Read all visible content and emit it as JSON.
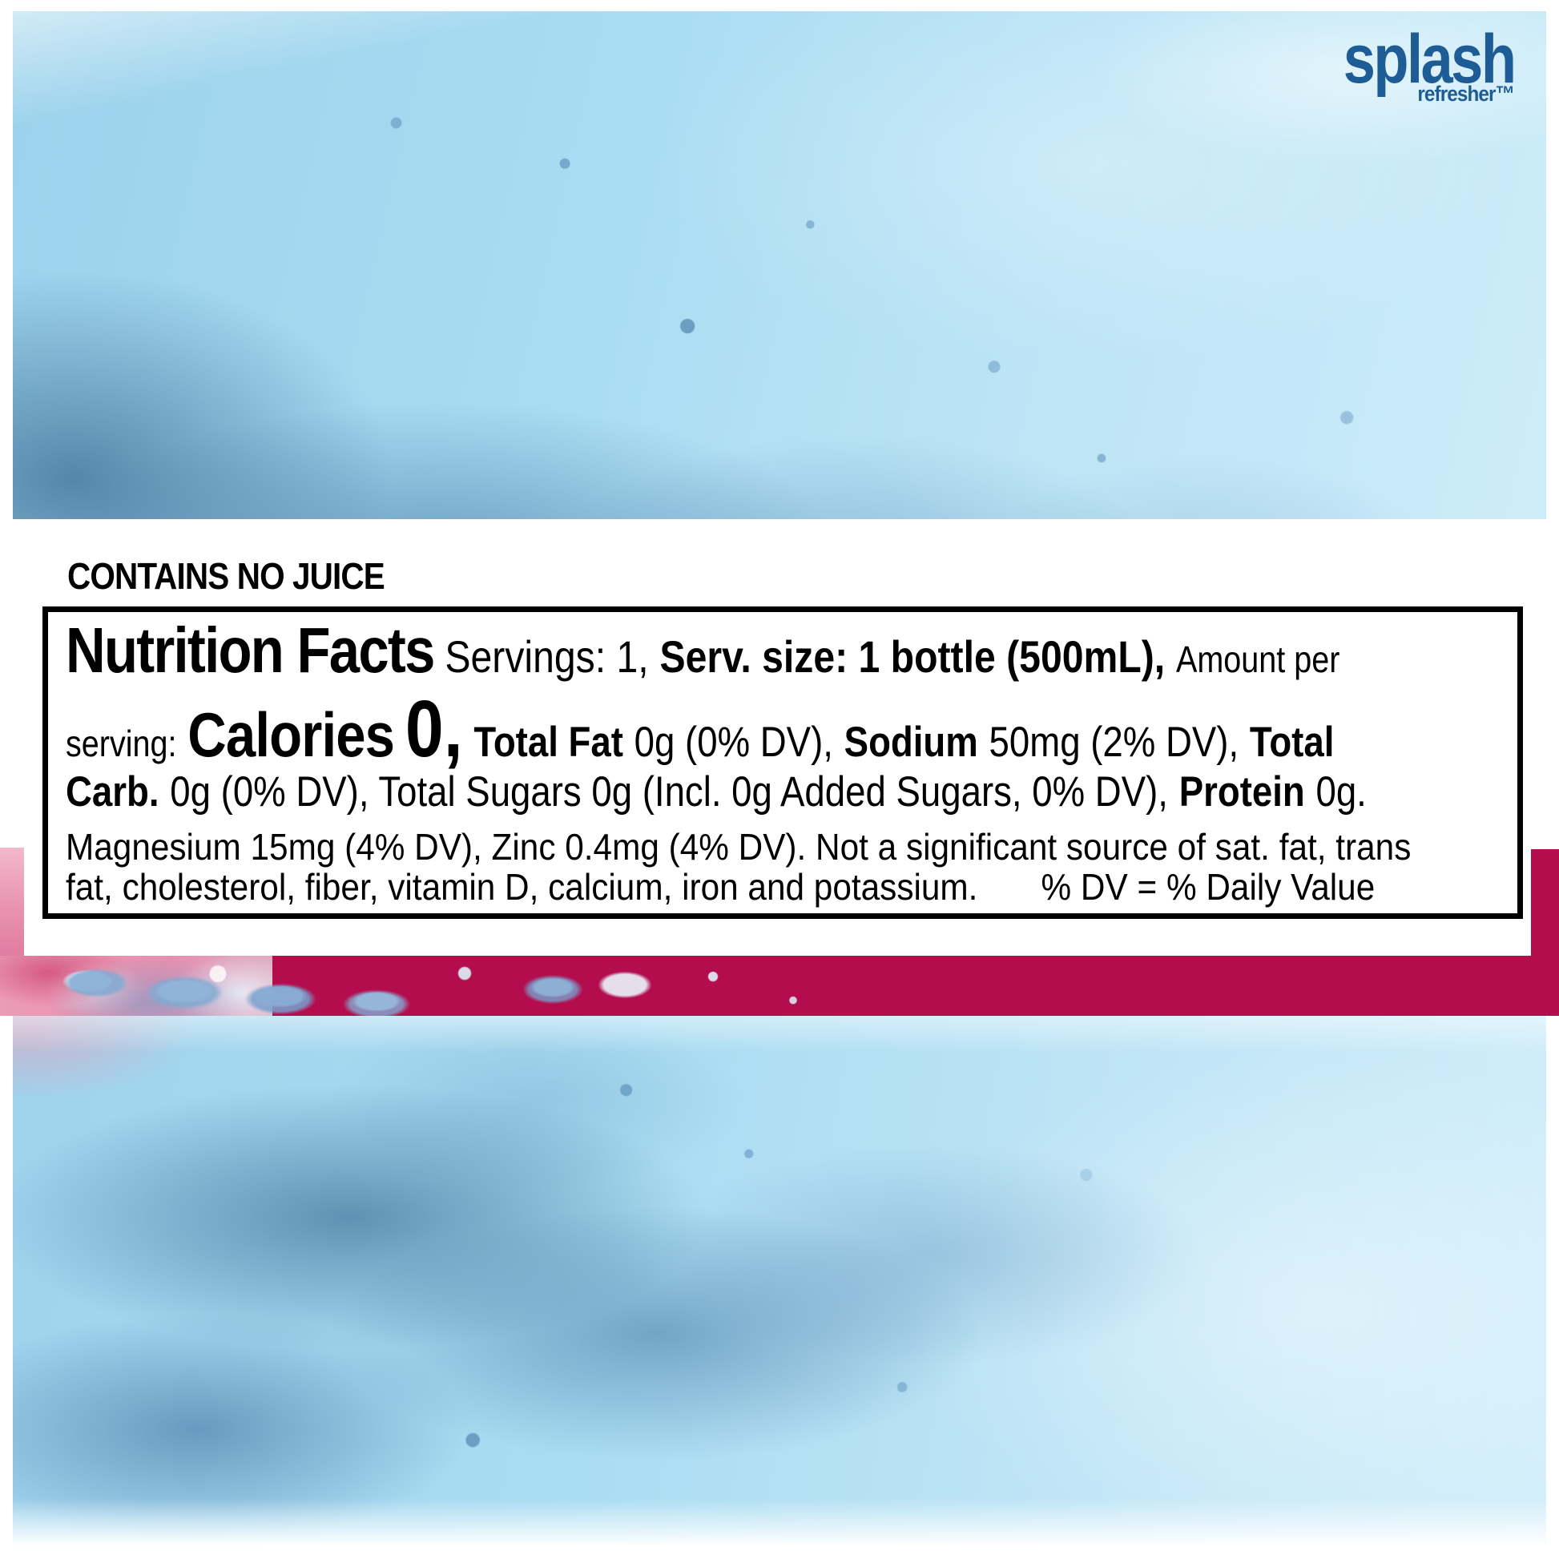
{
  "brand": {
    "name": "splash",
    "tagline": "refresher™"
  },
  "claim": "CONTAINS NO JUICE",
  "colors": {
    "accent_magenta": "#b30d4d",
    "logo_blue": "#1d5c94",
    "water_blue": "#a9dcf2"
  },
  "nutrition_label": {
    "title": "Nutrition Facts",
    "servings": "Servings: 1,",
    "serving_size": "Serv. size: 1 bottle (500mL),",
    "amount_per": "Amount per",
    "serving_word": "serving:",
    "calories_label": "Calories",
    "calories_value": "0,",
    "total_fat_label": "Total Fat",
    "total_fat_value": "0g (0% DV),",
    "sodium_label": "Sodium",
    "sodium_value": "50mg (2% DV),",
    "total_carb_label_part1": "Total",
    "total_carb_label_part2": "Carb.",
    "carb_sugars_text": "0g (0% DV), Total Sugars 0g (Incl. 0g Added Sugars, 0% DV),",
    "protein_label": "Protein",
    "protein_value": "0g.",
    "micronutrients_line1": "Magnesium 15mg (4% DV), Zinc 0.4mg (4% DV). Not a significant source of sat. fat, trans",
    "micronutrients_line2": "fat, cholesterol, fiber, vitamin D, calcium, iron and potassium.",
    "dv_note": "% DV = % Daily Value"
  }
}
